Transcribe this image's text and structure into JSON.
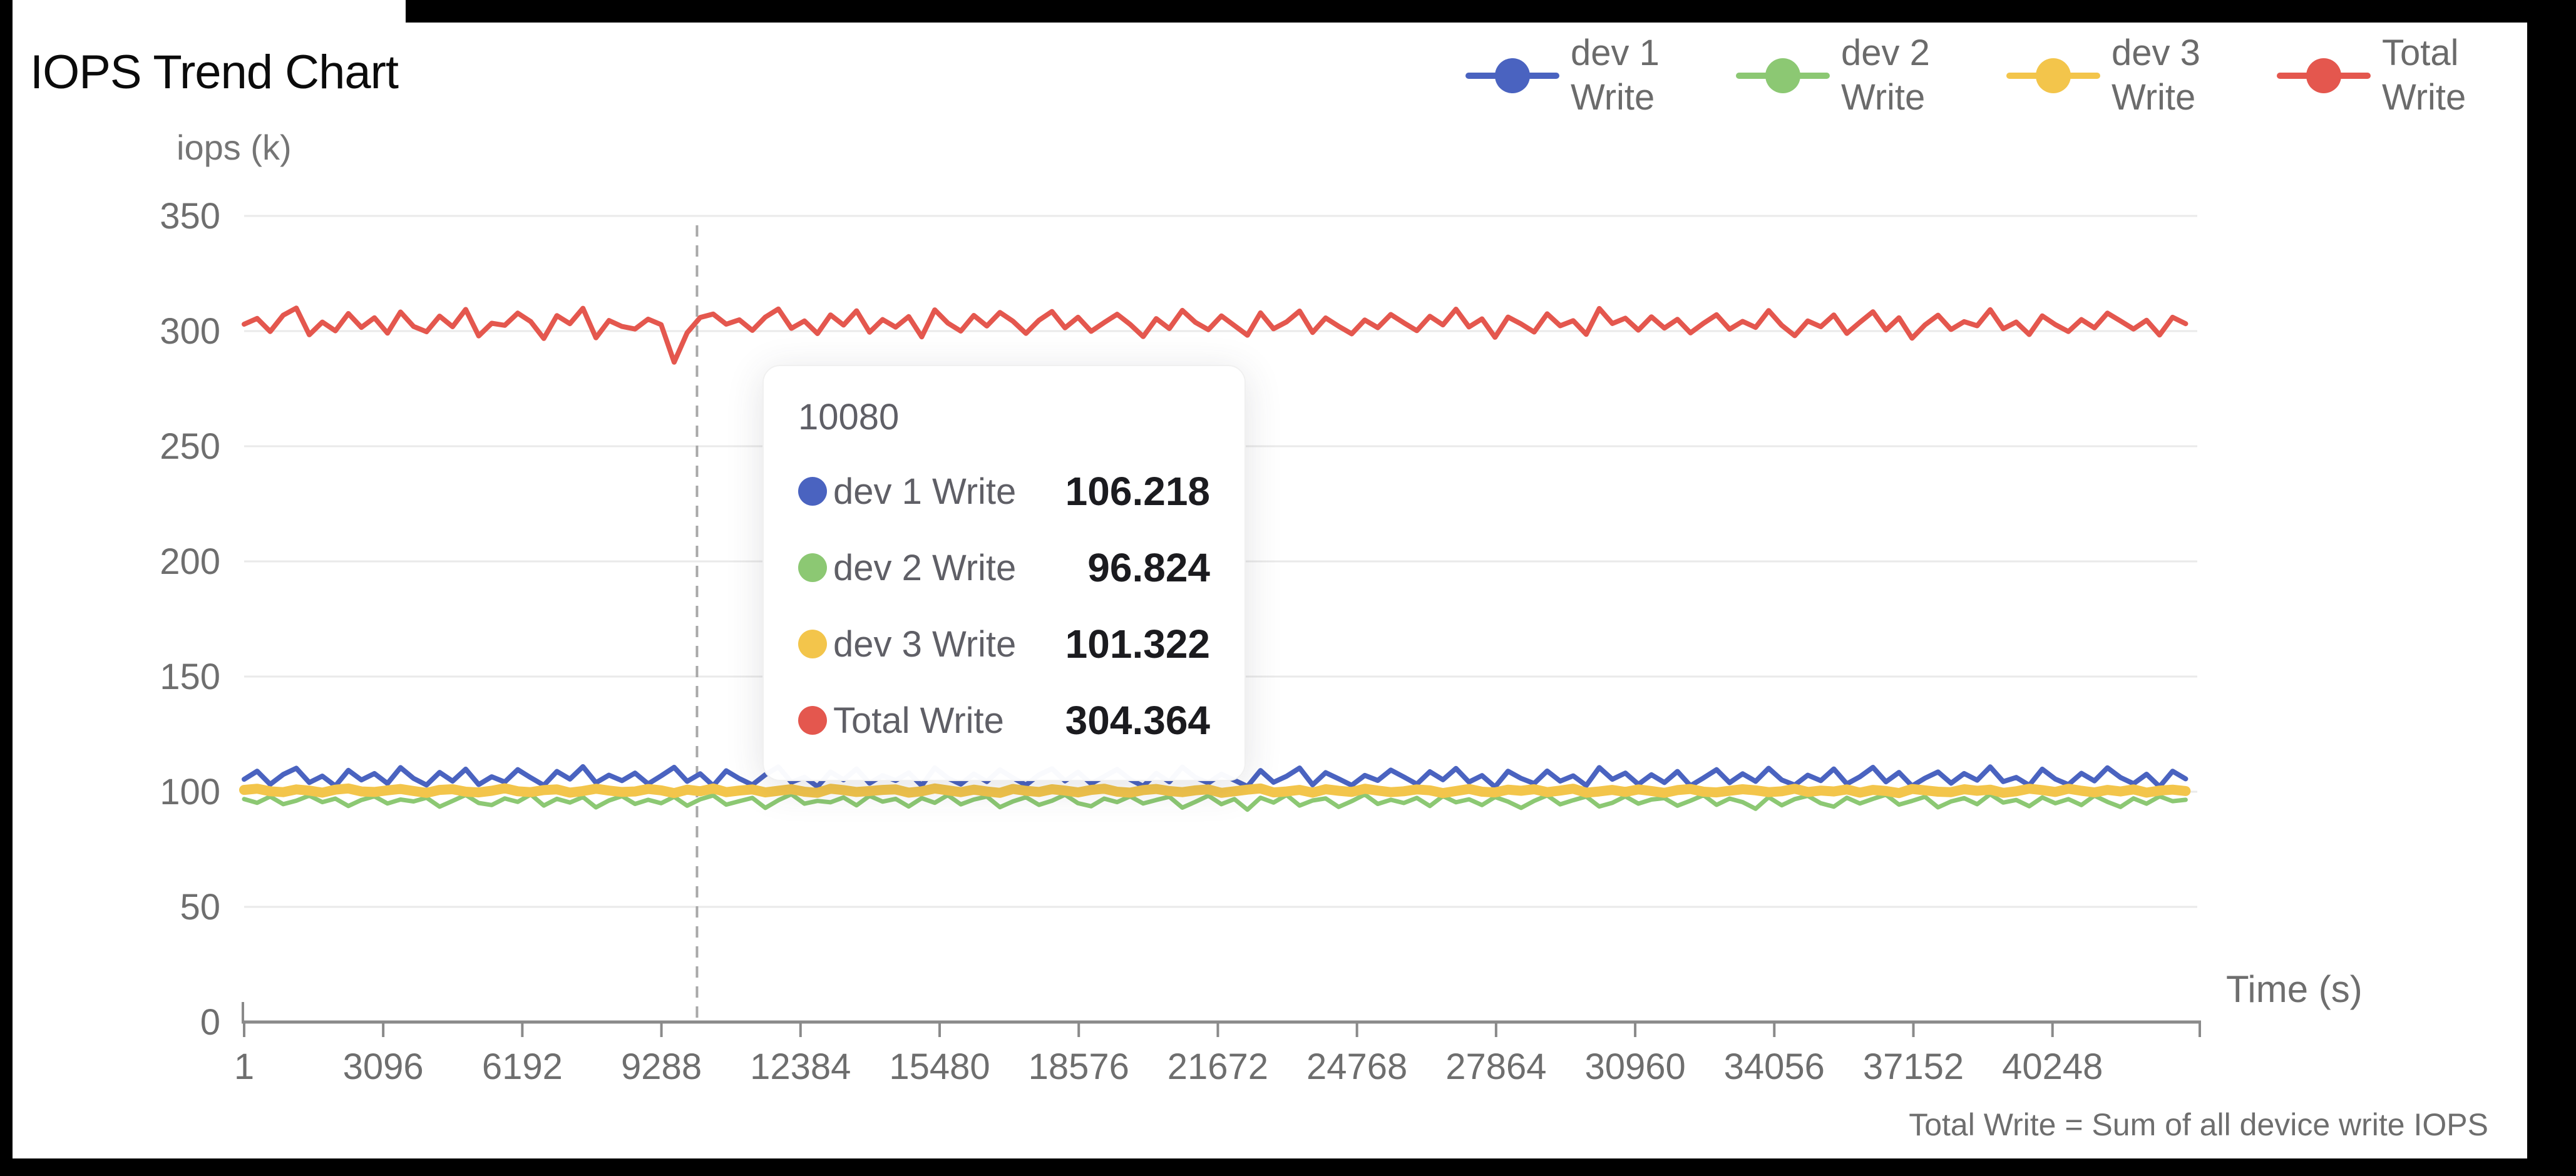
{
  "header": {
    "title": "IOPS Trend Chart"
  },
  "footnote": {
    "text": "Total Write = Sum of all device write IOPS"
  },
  "tooltip": {
    "header": "10080",
    "rows": [
      {
        "label": "dev 1 Write",
        "value": "106.218",
        "color": "#4a63c0"
      },
      {
        "label": "dev 2 Write",
        "value": "96.824",
        "color": "#8cc873"
      },
      {
        "label": "dev 3 Write",
        "value": "101.322",
        "color": "#f3c54b"
      },
      {
        "label": "Total Write",
        "value": "304.364",
        "color": "#e4574e"
      }
    ]
  },
  "chart_data": {
    "type": "line",
    "title": "IOPS Trend Chart",
    "xlabel": "Time (s)",
    "ylabel": "iops (k)",
    "xlim": [
      1,
      43470
    ],
    "ylim": [
      0,
      350
    ],
    "x_ticks": [
      1,
      3096,
      6192,
      9288,
      12384,
      15480,
      18576,
      21672,
      24768,
      27864,
      30960,
      34056,
      37152,
      40248
    ],
    "y_ticks": [
      0,
      50,
      100,
      150,
      200,
      250,
      300,
      350
    ],
    "grid": true,
    "legend_position": "top-right",
    "crosshair_x": 10080,
    "x_start": 1,
    "x_step": 290,
    "tooltip_at": {
      "x": 10080,
      "values": {
        "dev 1 Write": 106.218,
        "dev 2 Write": 96.824,
        "dev 3 Write": 101.322,
        "Total Write": 304.364
      }
    },
    "colors": {
      "grid": "#eaeaea",
      "axis": "#8a8a8a",
      "tick_text": "#6e6e6e",
      "crosshair": "#a8a8a8"
    },
    "series": [
      {
        "name": "dev 1 Write",
        "color": "#4a63c0",
        "width": 8,
        "values": [
          105.4,
          108.9,
          103.2,
          107.5,
          110.2,
          104.0,
          106.8,
          102.5,
          109.3,
          105.1,
          107.9,
          103.6,
          110.5,
          105.8,
          102.9,
          108.4,
          104.6,
          109.8,
          103.1,
          106.5,
          104.2,
          109.6,
          106.1,
          102.8,
          108.8,
          105.5,
          110.9,
          103.9,
          107.2,
          104.8,
          108.1,
          103.4,
          106.9,
          110.6,
          104.5,
          107.8,
          102.6,
          109.1,
          105.7,
          103.0,
          107.4,
          110.8,
          104.1,
          106.3,
          102.2,
          108.6,
          105.2,
          109.9,
          103.7,
          107.0,
          104.9,
          108.2,
          102.7,
          110.4,
          105.9,
          103.3,
          107.7,
          104.4,
          109.5,
          106.0,
          102.9,
          107.3,
          110.0,
          104.7,
          108.5,
          103.5,
          106.6,
          109.7,
          105.3,
          102.4,
          108.0,
          104.3,
          110.7,
          106.2,
          103.8,
          107.6,
          105.0,
          102.3,
          109.2,
          104.1,
          106.7,
          110.3,
          103.0,
          108.3,
          105.6,
          102.8,
          107.1,
          104.9,
          109.4,
          106.4,
          103.3,
          108.7,
          105.2,
          110.1,
          104.2,
          107.0,
          102.1,
          108.9,
          105.8,
          103.6,
          109.0,
          104.6,
          106.9,
          102.7,
          110.5,
          105.4,
          108.1,
          103.2,
          107.4,
          104.0,
          108.8,
          102.6,
          106.0,
          109.6,
          103.9,
          107.8,
          104.5,
          110.2,
          105.1,
          102.9,
          107.2,
          104.8,
          109.9,
          103.4,
          106.5,
          110.6,
          104.3,
          108.4,
          102.5,
          105.9,
          108.6,
          103.7,
          107.9,
          105.0,
          110.8,
          104.4,
          106.2,
          102.8,
          109.8,
          105.5,
          103.1,
          108.0,
          104.7,
          110.4,
          106.2,
          103.5,
          107.6,
          102.2,
          108.9,
          105.6
        ]
      },
      {
        "name": "dev 2 Write",
        "color": "#8cc873",
        "width": 7,
        "values": [
          96.8,
          95.2,
          97.9,
          94.6,
          96.1,
          98.3,
          95.5,
          97.0,
          93.8,
          96.4,
          98.0,
          94.9,
          96.6,
          95.8,
          97.4,
          93.5,
          96.0,
          98.6,
          95.1,
          94.2,
          97.1,
          95.6,
          98.8,
          94.0,
          96.9,
          95.3,
          97.7,
          93.2,
          96.2,
          98.1,
          94.7,
          96.5,
          95.0,
          97.8,
          93.9,
          96.7,
          98.4,
          94.4,
          95.9,
          97.3,
          93.0,
          96.3,
          98.9,
          94.8,
          96.0,
          95.4,
          97.5,
          94.1,
          98.2,
          95.7,
          96.9,
          93.6,
          97.2,
          95.2,
          98.5,
          94.5,
          96.6,
          97.9,
          93.3,
          95.8,
          97.6,
          94.3,
          96.1,
          98.7,
          95.0,
          93.7,
          97.0,
          95.5,
          98.0,
          94.9,
          96.4,
          97.8,
          93.1,
          95.6,
          98.3,
          94.6,
          96.8,
          92.2,
          97.4,
          95.3,
          98.6,
          94.0,
          96.2,
          97.1,
          93.4,
          95.9,
          98.8,
          94.7,
          96.5,
          95.1,
          97.3,
          93.8,
          98.1,
          95.4,
          96.7,
          94.2,
          97.7,
          95.7,
          93.0,
          96.0,
          98.4,
          94.5,
          96.3,
          97.9,
          93.6,
          95.2,
          98.0,
          94.8,
          96.6,
          97.2,
          93.9,
          96.1,
          98.5,
          94.3,
          97.0,
          95.5,
          92.6,
          97.6,
          94.1,
          96.8,
          98.2,
          95.0,
          93.5,
          97.4,
          94.9,
          96.9,
          98.7,
          94.4,
          96.0,
          97.8,
          93.2,
          95.8,
          97.2,
          94.6,
          98.9,
          95.3,
          96.4,
          93.7,
          97.5,
          95.0,
          96.8,
          94.2,
          98.3,
          95.6,
          93.4,
          97.1,
          94.8,
          98.0,
          95.9,
          96.5
        ]
      },
      {
        "name": "dev 3 Write",
        "color": "#f3c54b",
        "width": 16,
        "values": [
          100.8,
          101.3,
          100.2,
          99.8,
          101.0,
          100.5,
          99.6,
          100.9,
          101.4,
          100.1,
          99.9,
          100.6,
          101.2,
          100.3,
          99.5,
          100.8,
          101.1,
          100.0,
          99.7,
          100.4,
          101.5,
          100.2,
          99.8,
          100.7,
          101.0,
          99.6,
          100.3,
          101.3,
          100.5,
          99.9,
          100.1,
          101.2,
          100.6,
          99.4,
          100.9,
          100.2,
          101.4,
          99.8,
          100.5,
          101.0,
          99.7,
          100.4,
          101.1,
          100.0,
          99.5,
          101.3,
          100.7,
          99.9,
          100.3,
          100.8,
          101.0,
          99.6,
          100.2,
          101.4,
          100.6,
          99.8,
          100.9,
          100.1,
          99.5,
          101.2,
          100.4,
          99.9,
          101.1,
          100.5,
          99.7,
          100.8,
          101.3,
          100.0,
          99.6,
          100.7,
          101.2,
          100.3,
          99.8,
          100.6,
          101.0,
          99.5,
          100.2,
          100.9,
          101.4,
          99.7,
          100.1,
          100.8,
          99.6,
          101.1,
          100.4,
          99.9,
          101.3,
          100.5,
          99.8,
          100.2,
          101.0,
          100.6,
          99.4,
          100.3,
          101.2,
          100.0,
          99.7,
          100.9,
          100.4,
          101.1,
          99.8,
          100.5,
          101.3,
          99.6,
          100.1,
          100.8,
          99.9,
          101.0,
          100.3,
          99.5,
          100.7,
          101.2,
          100.0,
          99.7,
          100.4,
          101.1,
          100.6,
          99.8,
          100.2,
          101.3,
          99.9,
          100.5,
          100.1,
          101.0,
          99.6,
          100.8,
          100.3,
          99.4,
          101.2,
          100.6,
          100.0,
          99.8,
          101.1,
          100.4,
          100.9,
          99.5,
          100.2,
          101.3,
          100.7,
          99.9,
          101.3,
          100.4,
          99.7,
          100.8,
          100.1,
          101.0,
          99.6,
          100.5,
          100.9,
          100.3
        ]
      },
      {
        "name": "Total Write",
        "color": "#e4574e",
        "width": 8,
        "values": [
          303.0,
          305.5,
          299.8,
          306.9,
          310.0,
          298.4,
          303.9,
          300.1,
          307.6,
          301.6,
          305.8,
          299.1,
          308.3,
          302.0,
          299.7,
          306.5,
          301.9,
          309.4,
          297.9,
          303.4,
          302.5,
          307.8,
          304.1,
          296.8,
          306.7,
          303.2,
          309.9,
          297.1,
          304.6,
          302.0,
          300.9,
          305.2,
          302.8,
          286.5,
          299.3,
          305.9,
          307.4,
          303.0,
          304.9,
          300.3,
          306.1,
          309.6,
          301.2,
          304.4,
          298.9,
          307.0,
          302.6,
          308.8,
          299.5,
          305.0,
          301.7,
          306.3,
          297.5,
          309.2,
          303.5,
          300.0,
          306.8,
          302.2,
          308.1,
          304.3,
          299.0,
          304.7,
          308.5,
          301.4,
          306.0,
          299.9,
          303.7,
          307.3,
          302.9,
          297.6,
          305.4,
          301.1,
          309.0,
          303.8,
          300.6,
          306.6,
          302.4,
          298.2,
          307.9,
          301.0,
          304.0,
          308.7,
          299.4,
          305.7,
          302.1,
          298.8,
          304.8,
          301.5,
          307.2,
          303.6,
          300.2,
          306.4,
          302.7,
          309.5,
          301.8,
          305.3,
          297.3,
          306.1,
          303.1,
          299.6,
          307.5,
          302.3,
          304.5,
          298.6,
          309.8,
          303.3,
          305.6,
          300.4,
          306.2,
          301.3,
          305.1,
          299.2,
          303.4,
          307.1,
          300.8,
          304.2,
          301.6,
          308.9,
          302.5,
          298.0,
          304.4,
          301.9,
          307.0,
          299.0,
          303.8,
          308.4,
          300.5,
          305.8,
          296.9,
          302.7,
          306.9,
          300.7,
          304.1,
          302.3,
          309.3,
          301.0,
          303.9,
          298.5,
          306.6,
          302.8,
          299.8,
          305.0,
          301.4,
          307.8,
          304.4,
          300.9,
          304.7,
          298.3,
          306.0,
          303.2
        ]
      }
    ]
  }
}
